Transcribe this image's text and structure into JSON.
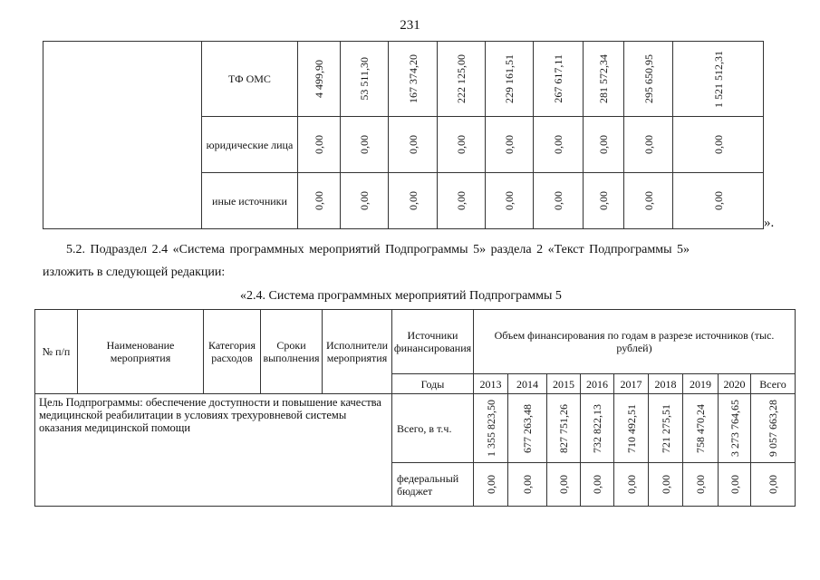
{
  "page_number": "231",
  "top_table": {
    "rows": [
      {
        "label": "ТФ ОМС",
        "values": [
          "4 499,90",
          "53 511,30",
          "167 374,20",
          "222 125,00",
          "229 161,51",
          "267 617,11",
          "281 572,34",
          "295 650,95",
          "1 521 512,31"
        ]
      },
      {
        "label": "юридические лица",
        "values": [
          "0,00",
          "0,00",
          "0,00",
          "0,00",
          "0,00",
          "0,00",
          "0,00",
          "0,00",
          "0,00"
        ]
      },
      {
        "label": "иные источники",
        "values": [
          "0,00",
          "0,00",
          "0,00",
          "0,00",
          "0,00",
          "0,00",
          "0,00",
          "0,00",
          "0,00"
        ]
      }
    ],
    "closing_quote": "»."
  },
  "paragraph": {
    "line1": "5.2. Подраздел 2.4 «Система программных мероприятий Подпрограммы 5» раздела 2 «Текст Подпрограммы 5»",
    "line2": "изложить в следующей редакции:"
  },
  "caption": "«2.4. Система программных мероприятий Подпрограммы 5",
  "bottom_table": {
    "headers": {
      "num": "№ п/п",
      "name": "Наименование мероприятия",
      "category": "Категория расходов",
      "terms": "Сроки выполнения",
      "executors": "Исполнители мероприятия",
      "sources": "Источники финансирования",
      "volume": "Объем финансирования по годам в разрезе источников (тыс. рублей)",
      "years_label": "Годы",
      "years": [
        "2013",
        "2014",
        "2015",
        "2016",
        "2017",
        "2018",
        "2019",
        "2020",
        "Всего"
      ]
    },
    "goal": "Цель Подпрограммы: обеспечение доступности и повышение качества медицинской реабилитации в условиях трехуровневой системы оказания медицинской помощи",
    "rows": [
      {
        "label": "Всего, в т.ч.",
        "values": [
          "1 355 823,50",
          "677 263,48",
          "827 751,26",
          "732 822,13",
          "710 492,51",
          "721 275,51",
          "758 470,24",
          "3 273 764,65",
          "9 057 663,28"
        ]
      },
      {
        "label": "федеральный бюджет",
        "values": [
          "0,00",
          "0,00",
          "0,00",
          "0,00",
          "0,00",
          "0,00",
          "0,00",
          "0,00",
          "0,00"
        ]
      }
    ]
  }
}
